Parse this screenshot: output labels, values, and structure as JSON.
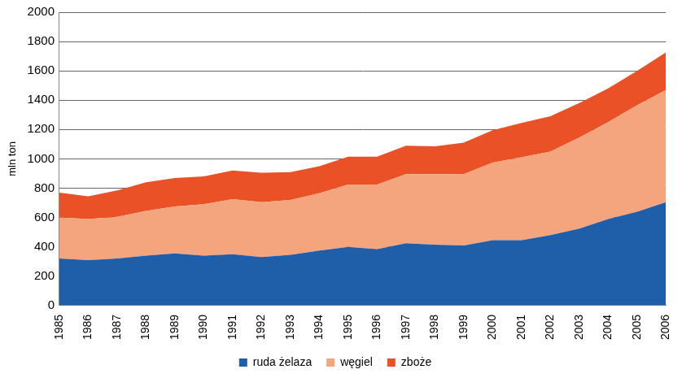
{
  "chart_data": {
    "type": "area",
    "stacked": true,
    "y_label": "mln ton",
    "categories": [
      "1985",
      "1986",
      "1987",
      "1988",
      "1989",
      "1990",
      "1991",
      "1992",
      "1993",
      "1994",
      "1995",
      "1996",
      "1997",
      "1998",
      "1999",
      "2000",
      "2001",
      "2002",
      "2003",
      "2004",
      "2005",
      "2006"
    ],
    "series": [
      {
        "name": "ruda żelaza",
        "color": "#1f5fa9",
        "values": [
          320,
          310,
          320,
          340,
          355,
          340,
          350,
          330,
          345,
          375,
          400,
          385,
          425,
          415,
          410,
          445,
          445,
          480,
          525,
          590,
          640,
          705
        ]
      },
      {
        "name": "węgiel",
        "color": "#f4a57e",
        "values": [
          280,
          280,
          285,
          305,
          320,
          350,
          375,
          375,
          375,
          390,
          425,
          440,
          470,
          480,
          485,
          530,
          565,
          570,
          620,
          660,
          725,
          765
        ]
      },
      {
        "name": "zboże",
        "color": "#ea5126",
        "values": [
          170,
          155,
          180,
          195,
          195,
          190,
          195,
          200,
          190,
          185,
          190,
          190,
          195,
          190,
          215,
          220,
          235,
          240,
          235,
          230,
          235,
          255
        ]
      }
    ],
    "ylim": [
      0,
      2000
    ],
    "yticks": [
      0,
      200,
      400,
      600,
      800,
      1000,
      1200,
      1400,
      1600,
      1800,
      2000
    ],
    "grid": true,
    "legend": "bottom"
  }
}
